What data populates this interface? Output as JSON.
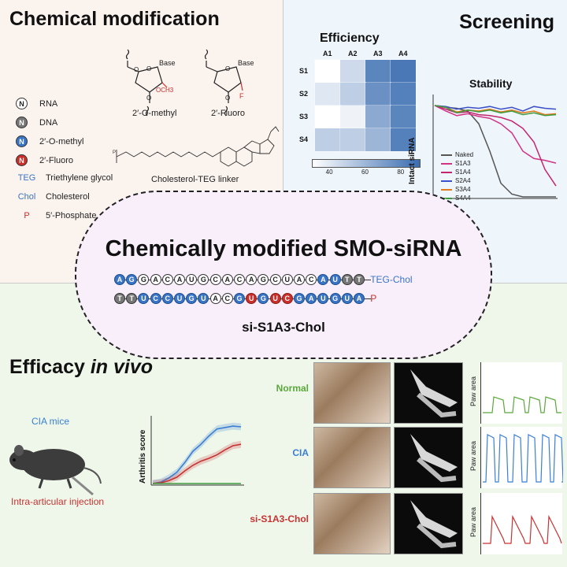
{
  "chem": {
    "title": "Chemical modification",
    "struct1_label": "2′-O-methyl",
    "struct2_label": "2′-Fluoro",
    "base_label": "Base",
    "och3": "OCH3",
    "f": "F",
    "linker_label": "Cholesterol-TEG linker",
    "legend": [
      {
        "symbol": "N",
        "label": "RNA",
        "kind": "rna"
      },
      {
        "symbol": "N",
        "label": "DNA",
        "kind": "dna"
      },
      {
        "symbol": "N",
        "label": "2′-O-methyl",
        "kind": "ome"
      },
      {
        "symbol": "N",
        "label": "2′-Fluoro",
        "kind": "flu"
      },
      {
        "symbol": "TEG",
        "label": "Triethylene glycol",
        "kind": "teg"
      },
      {
        "symbol": "Chol",
        "label": "Cholesterol",
        "kind": "chol"
      },
      {
        "symbol": "P",
        "label": "5′-Phosphate",
        "kind": "p"
      }
    ]
  },
  "screen": {
    "title": "Screening",
    "eff_title": "Efficiency",
    "stab_title": "Stability",
    "stab_ylabel": "Intact siRNA"
  },
  "chart_data": [
    {
      "type": "heatmap",
      "title": "Efficiency",
      "columns": [
        "A1",
        "A2",
        "A3",
        "A4"
      ],
      "rows": [
        "S1",
        "S2",
        "S3",
        "S4"
      ],
      "values": [
        [
          30,
          45,
          80,
          85
        ],
        [
          40,
          50,
          75,
          82
        ],
        [
          30,
          35,
          65,
          80
        ],
        [
          50,
          50,
          60,
          82
        ]
      ],
      "colorbar_ticks": [
        40,
        60,
        80
      ],
      "range": [
        30,
        90
      ]
    },
    {
      "type": "line",
      "title": "Stability",
      "ylabel": "Intact siRNA",
      "series": [
        {
          "name": "Naked",
          "color": "#555555",
          "values": [
            100,
            98,
            97,
            94,
            80,
            50,
            15,
            3,
            0,
            0,
            0,
            0
          ]
        },
        {
          "name": "S1A3",
          "color": "#d13385",
          "values": [
            100,
            94,
            89,
            91,
            88,
            86,
            80,
            70,
            50,
            42,
            40,
            37
          ]
        },
        {
          "name": "S1A4",
          "color": "#c4266e",
          "values": [
            100,
            96,
            92,
            93,
            90,
            89,
            87,
            83,
            75,
            60,
            30,
            12
          ]
        },
        {
          "name": "S2A4",
          "color": "#3a4fc8",
          "values": [
            100,
            99,
            96,
            98,
            97,
            99,
            96,
            98,
            94,
            99,
            97,
            96
          ]
        },
        {
          "name": "S3A4",
          "color": "#e07a1f",
          "values": [
            100,
            98,
            93,
            95,
            94,
            96,
            93,
            95,
            92,
            94,
            90,
            91
          ]
        },
        {
          "name": "S4A4",
          "color": "#3f9b3f",
          "values": [
            100,
            98,
            92,
            95,
            93,
            95,
            92,
            94,
            90,
            92,
            89,
            90
          ]
        }
      ]
    },
    {
      "type": "line",
      "title": "",
      "ylabel": "Arthritis score",
      "series": [
        {
          "name": "",
          "color": "#3a7fd4",
          "values": [
            0,
            0.2,
            0.8,
            1.6,
            3.0,
            4.6,
            5.6,
            6.8,
            7.8,
            8.0,
            8.2,
            8.1
          ]
        },
        {
          "name": "",
          "color": "#c83232",
          "values": [
            0,
            0.1,
            0.4,
            0.9,
            1.8,
            2.6,
            3.2,
            3.6,
            4.1,
            4.8,
            5.4,
            5.6
          ]
        },
        {
          "name": "",
          "color": "#3f9b3f",
          "values": [
            0,
            0,
            0,
            0,
            0,
            0,
            0,
            0,
            0,
            0,
            0,
            0
          ]
        }
      ]
    }
  ],
  "center": {
    "title": "Chemically modified SMO-siRNA",
    "sense": [
      "A",
      "G",
      "G",
      "A",
      "C",
      "A",
      "U",
      "G",
      "C",
      "A",
      "C",
      "A",
      "G",
      "C",
      "U",
      "A",
      "C",
      "A",
      "U",
      "T",
      "T"
    ],
    "sense_kinds": [
      "ome",
      "ome",
      "rna",
      "rna",
      "rna",
      "rna",
      "rna",
      "rna",
      "rna",
      "rna",
      "rna",
      "rna",
      "rna",
      "rna",
      "rna",
      "rna",
      "rna",
      "ome",
      "ome",
      "dna",
      "dna"
    ],
    "sense_suffix": "TEG-Chol",
    "antisense": [
      "T",
      "T",
      "U",
      "C",
      "C",
      "U",
      "G",
      "U",
      "A",
      "C",
      "G",
      "U",
      "G",
      "U",
      "C",
      "G",
      "A",
      "U",
      "G",
      "U",
      "A"
    ],
    "antisense_kinds": [
      "dna",
      "dna",
      "ome",
      "ome",
      "ome",
      "ome",
      "ome",
      "ome",
      "rna",
      "rna",
      "ome",
      "flu",
      "ome",
      "flu",
      "flu",
      "ome",
      "ome",
      "ome",
      "ome",
      "ome",
      "ome"
    ],
    "antisense_suffix": "P",
    "name": "si-S1A3-Chol"
  },
  "vivo": {
    "title_a": "Efficacy ",
    "title_b": "in vivo",
    "cia_mice": "CIA mice",
    "injection": "Intra-articular injection",
    "ylabel": "Arthritis score",
    "rows": [
      {
        "label": "Normal",
        "color": "#5aa83b"
      },
      {
        "label": "CIA",
        "color": "#3a7fd4"
      },
      {
        "label": "si-S1A3-Chol",
        "color": "#c83232"
      }
    ],
    "paw_area_label": "Paw area"
  }
}
